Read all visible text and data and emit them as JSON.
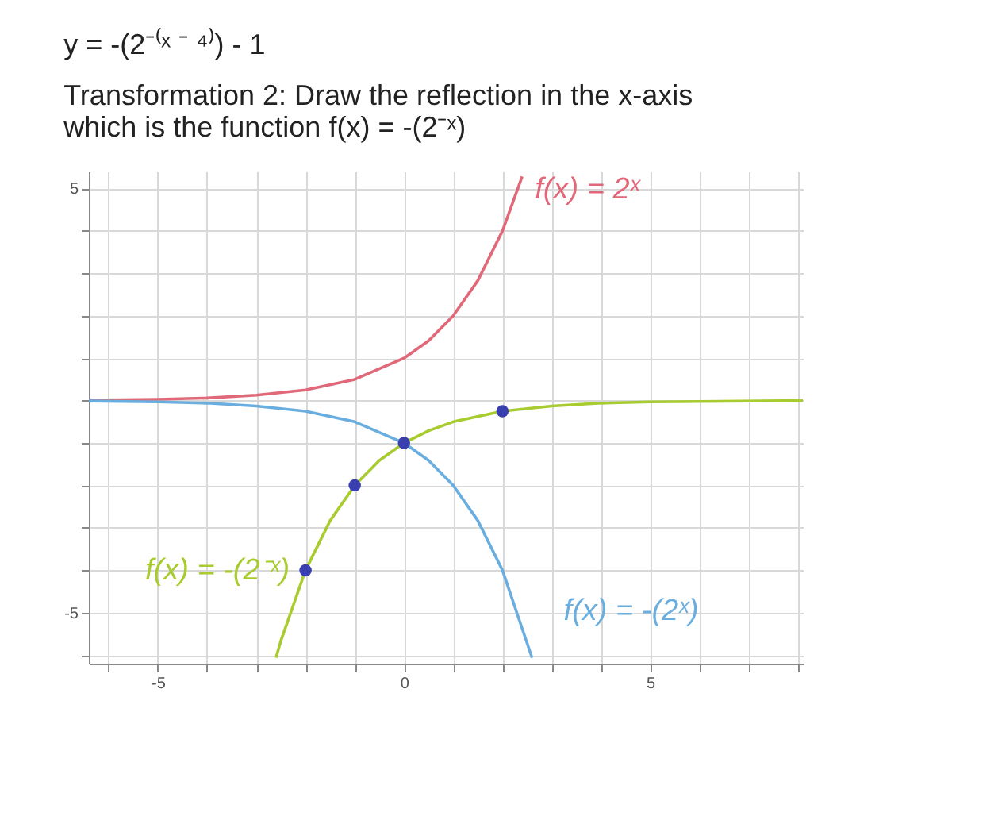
{
  "chart_data": {
    "type": "line",
    "title": "y = -(2⁻⁽ˣ ⁻ ⁴⁾) - 1",
    "subtitle": "Transformation 2: Draw the reflection in the x-axis which is the function f(x) = -(2⁻ˣ)",
    "xlim": [
      -6.4,
      8.1
    ],
    "ylim": [
      -6.2,
      5.4
    ],
    "xticks": [
      {
        "value": -6,
        "label": null
      },
      -5,
      {
        "value": -4,
        "label": null
      },
      {
        "value": -3,
        "label": null
      },
      {
        "value": -2,
        "label": null
      },
      {
        "value": -1,
        "label": null
      },
      0,
      {
        "value": 1,
        "label": null
      },
      {
        "value": 2,
        "label": null
      },
      {
        "value": 3,
        "label": null
      },
      {
        "value": 4,
        "label": null
      },
      5,
      {
        "value": 6,
        "label": null
      },
      {
        "value": 7,
        "label": null
      },
      {
        "value": 8,
        "label": null
      }
    ],
    "yticks": [
      {
        "value": -6,
        "label": null
      },
      -5,
      {
        "value": -4,
        "label": null
      },
      {
        "value": -3,
        "label": null
      },
      {
        "value": -2,
        "label": null
      },
      {
        "value": -1,
        "label": null
      },
      {
        "value": 0,
        "label": null
      },
      {
        "value": 1,
        "label": null
      },
      {
        "value": 2,
        "label": null
      },
      {
        "value": 3,
        "label": null
      },
      {
        "value": 4,
        "label": null
      },
      5
    ],
    "grid": true,
    "line_style": "solid",
    "marker": "none",
    "series": [
      {
        "name": "f(x) = 2ˣ",
        "color": "#e06878",
        "x": [
          -6.4,
          -5,
          -4,
          -3,
          -2,
          -1,
          0,
          0.5,
          1,
          1.5,
          2,
          2.4
        ],
        "values": [
          0.01,
          0.03,
          0.06,
          0.13,
          0.25,
          0.5,
          1,
          1.41,
          2,
          2.83,
          4,
          5.28
        ]
      },
      {
        "name": "f(x) = -(2ˣ)",
        "color": "#6aaee0",
        "x": [
          -6.4,
          -5,
          -4,
          -3,
          -2,
          -1,
          0,
          0.5,
          1,
          1.5,
          2,
          2.6
        ],
        "values": [
          -0.01,
          -0.03,
          -0.06,
          -0.13,
          -0.25,
          -0.5,
          -1,
          -1.41,
          -2,
          -2.83,
          -4,
          -6.06
        ]
      },
      {
        "name": "f(x) = -(2⁻ˣ)",
        "color": "#a8cc30",
        "x": [
          -2.6,
          -2.5,
          -2,
          -1.5,
          -1,
          -0.5,
          0,
          0.5,
          1,
          2,
          3,
          4,
          5,
          6,
          8.1
        ],
        "values": [
          -6.06,
          -5.66,
          -4,
          -2.83,
          -2,
          -1.41,
          -1,
          -0.71,
          -0.5,
          -0.25,
          -0.13,
          -0.06,
          -0.03,
          -0.02,
          0
        ]
      },
      {
        "type": "scatter",
        "marker": "circle",
        "color": "#3a3fb0",
        "x": [
          -2,
          -1,
          0,
          2
        ],
        "values": [
          -4,
          -2,
          -1,
          -0.25
        ]
      }
    ]
  }
}
